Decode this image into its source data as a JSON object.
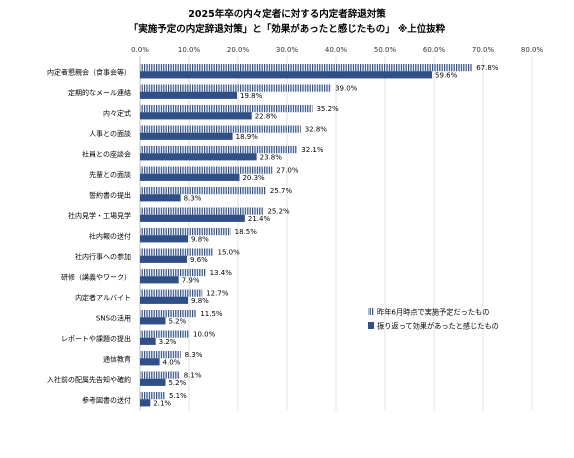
{
  "chart_data": {
    "type": "bar",
    "orientation": "horizontal",
    "title": "2025年卒の内々定者に対する内定者辞退対策",
    "subtitle": "「実施予定の内定辞退対策」と「効果があったと感じたもの」 ※上位抜粋",
    "xlim": [
      0,
      80
    ],
    "x_ticks": [
      "0.0%",
      "10.0%",
      "20.0%",
      "30.0%",
      "40.0%",
      "50.0%",
      "60.0%",
      "70.0%",
      "80.0%"
    ],
    "grid": true,
    "legend_position": "right",
    "categories": [
      "内定者懇親会（食事会等）",
      "定期的なメール連絡",
      "内々定式",
      "人事との面談",
      "社員との座談会",
      "先輩との面談",
      "誓約書の提出",
      "社内見学・工場見学",
      "社内報の送付",
      "社内行事への参加",
      "研修（講義やワーク）",
      "内定者アルバイト",
      "SNSの活用",
      "レポートや課題の提出",
      "通信教育",
      "入社前の配属先告知や確約",
      "参考図書の送付"
    ],
    "series": [
      {
        "name": "昨年6月時点で実施予定だったもの",
        "values": [
          67.8,
          39.0,
          35.2,
          32.8,
          32.1,
          27.0,
          25.7,
          25.2,
          18.5,
          15.0,
          13.4,
          12.7,
          11.5,
          10.0,
          8.3,
          8.1,
          5.1
        ],
        "labels": [
          "67.8%",
          "39.0%",
          "35.2%",
          "32.8%",
          "32.1%",
          "27.0%",
          "25.7%",
          "25.2%",
          "18.5%",
          "15.0%",
          "13.4%",
          "12.7%",
          "11.5%",
          "10.0%",
          "8.3%",
          "8.1%",
          "5.1%"
        ],
        "color": "#2f4f86",
        "pattern": "vertical-stripes"
      },
      {
        "name": "振り返って効果があったと感じたもの",
        "values": [
          59.6,
          19.8,
          22.8,
          18.9,
          23.8,
          20.3,
          8.3,
          21.4,
          9.8,
          9.6,
          7.9,
          9.8,
          5.2,
          3.2,
          4.0,
          5.2,
          2.1
        ],
        "labels": [
          "59.6%",
          "19.8%",
          "22.8%",
          "18.9%",
          "23.8%",
          "20.3%",
          "8.3%",
          "21.4%",
          "9.8%",
          "9.6%",
          "7.9%",
          "9.8%",
          "5.2%",
          "3.2%",
          "4.0%",
          "5.2%",
          "2.1%"
        ],
        "color": "#2f4f86",
        "pattern": "solid"
      }
    ]
  }
}
